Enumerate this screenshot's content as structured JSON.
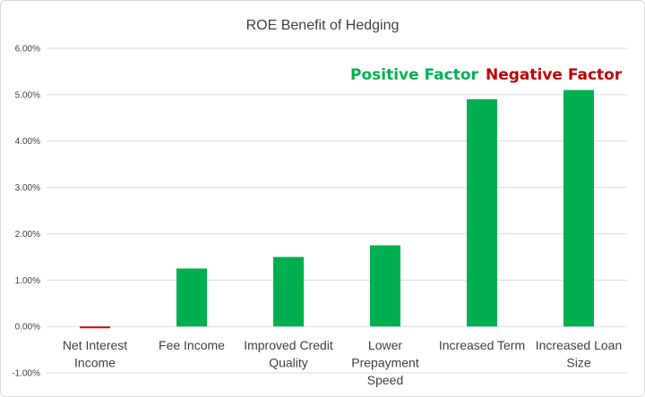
{
  "chart_data": {
    "type": "bar",
    "title": "ROE Benefit of Hedging",
    "xlabel": "",
    "ylabel": "",
    "ylim": [
      -0.01,
      0.06
    ],
    "yticks": [
      -0.01,
      0,
      0.01,
      0.02,
      0.03,
      0.04,
      0.05,
      0.06
    ],
    "ytick_labels": [
      "-1.00%",
      "0.00%",
      "1.00%",
      "2.00%",
      "3.00%",
      "4.00%",
      "5.00%",
      "6.00%"
    ],
    "categories": [
      [
        "Net Interest",
        "Income"
      ],
      [
        "Fee Income"
      ],
      [
        "Improved Credit",
        "Quality"
      ],
      [
        "Lower",
        "Prepayment",
        "Speed"
      ],
      [
        "Increased Term"
      ],
      [
        "Increased Loan",
        "Size"
      ]
    ],
    "values": [
      -0.0003,
      0.0125,
      0.015,
      0.0175,
      0.049,
      0.051
    ],
    "bar_colors": [
      "#e00000",
      "#00b050",
      "#00b050",
      "#00b050",
      "#00b050",
      "#00b050"
    ],
    "grid": "horizontal",
    "legend": [
      {
        "label": "Positive Factor",
        "color": "#00b050"
      },
      {
        "label": "Negative Factor",
        "color": "#c00000"
      }
    ],
    "legend_position": "top-right"
  }
}
